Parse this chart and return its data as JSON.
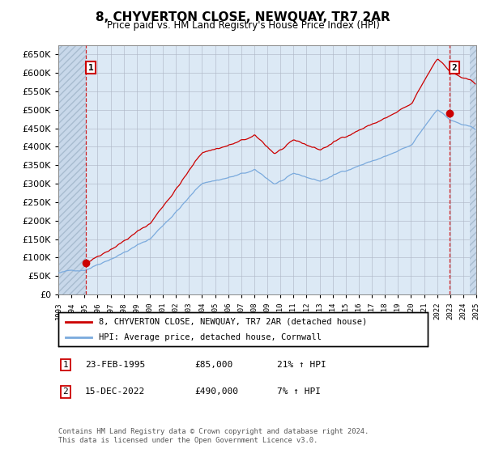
{
  "title": "8, CHYVERTON CLOSE, NEWQUAY, TR7 2AR",
  "subtitle": "Price paid vs. HM Land Registry's House Price Index (HPI)",
  "legend_line1": "8, CHYVERTON CLOSE, NEWQUAY, TR7 2AR (detached house)",
  "legend_line2": "HPI: Average price, detached house, Cornwall",
  "annotation1_label": "1",
  "annotation1_date": "23-FEB-1995",
  "annotation1_price": "£85,000",
  "annotation1_hpi": "21% ↑ HPI",
  "annotation2_label": "2",
  "annotation2_date": "15-DEC-2022",
  "annotation2_price": "£490,000",
  "annotation2_hpi": "7% ↑ HPI",
  "footnote": "Contains HM Land Registry data © Crown copyright and database right 2024.\nThis data is licensed under the Open Government Licence v3.0.",
  "ylim": [
    0,
    675000
  ],
  "yticks": [
    0,
    50000,
    100000,
    150000,
    200000,
    250000,
    300000,
    350000,
    400000,
    450000,
    500000,
    550000,
    600000,
    650000
  ],
  "background_color": "#dce9f5",
  "grid_color": "#b0b8c8",
  "red_line_color": "#cc0000",
  "blue_line_color": "#7aaadd",
  "annotation_line_color": "#cc0000",
  "sale1_x": 1995.12,
  "sale1_y": 85000,
  "sale2_x": 2022.96,
  "sale2_y": 490000,
  "xmin": 1993.0,
  "xmax": 2025.0
}
